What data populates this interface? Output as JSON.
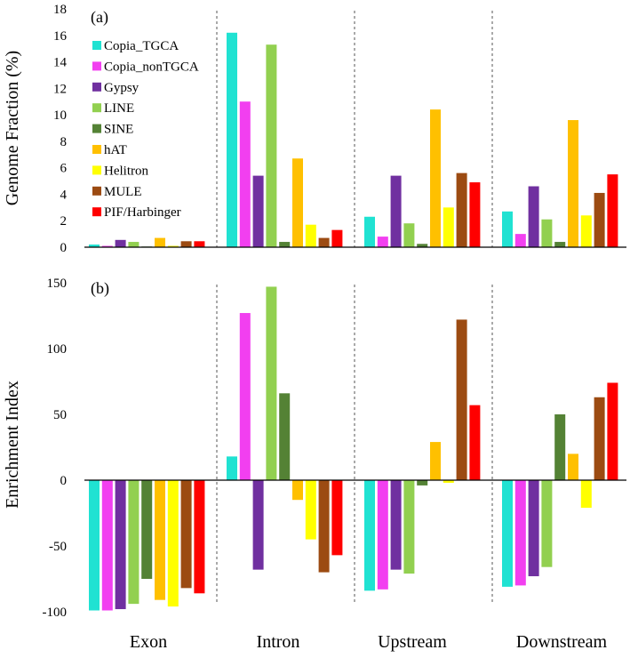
{
  "chart_data": [
    {
      "type": "bar",
      "panel": "(a)",
      "ylabel": "Genome Fraction (%)",
      "ylim": [
        0,
        18
      ],
      "yticks": [
        "0",
        "2",
        "4",
        "6",
        "8",
        "10",
        "12",
        "14",
        "16",
        "18"
      ],
      "categories": [
        "Exon",
        "Intron",
        "Upstream",
        "Downstream"
      ],
      "series": [
        {
          "name": "Copia_TGCA",
          "color": "#20E2D2",
          "values": [
            0.2,
            16.2,
            2.3,
            2.7
          ]
        },
        {
          "name": "Copia_nonTGCA",
          "color": "#F23FF0",
          "values": [
            0.1,
            11.0,
            0.8,
            1.0
          ]
        },
        {
          "name": "Gypsy",
          "color": "#7030A0",
          "values": [
            0.55,
            5.4,
            5.4,
            4.6
          ]
        },
        {
          "name": "LINE",
          "color": "#92D050",
          "values": [
            0.4,
            15.3,
            1.8,
            2.1
          ]
        },
        {
          "name": "SINE",
          "color": "#548235",
          "values": [
            0.05,
            0.4,
            0.25,
            0.4
          ]
        },
        {
          "name": "hAT",
          "color": "#FFC000",
          "values": [
            0.7,
            6.7,
            10.4,
            9.6
          ]
        },
        {
          "name": "Helitron",
          "color": "#FFFF00",
          "values": [
            0.1,
            1.7,
            3.0,
            2.4
          ]
        },
        {
          "name": "MULE",
          "color": "#9C4B12",
          "values": [
            0.45,
            0.7,
            5.6,
            4.1
          ]
        },
        {
          "name": "PIF/Harbinger",
          "color": "#FF0000",
          "values": [
            0.45,
            1.3,
            4.9,
            5.5
          ]
        }
      ],
      "legend_position": "top-left"
    },
    {
      "type": "bar",
      "panel": "(b)",
      "ylabel": "Enrichment Index",
      "ylim": [
        -100,
        150
      ],
      "yticks": [
        "-100",
        "-50",
        "0",
        "50",
        "100",
        "150"
      ],
      "categories": [
        "Exon",
        "Intron",
        "Upstream",
        "Downstream"
      ],
      "series": [
        {
          "name": "Copia_TGCA",
          "color": "#20E2D2",
          "values": [
            -99,
            18,
            -84,
            -81
          ]
        },
        {
          "name": "Copia_nonTGCA",
          "color": "#F23FF0",
          "values": [
            -99,
            127,
            -83,
            -80
          ]
        },
        {
          "name": "Gypsy",
          "color": "#7030A0",
          "values": [
            -98,
            -68,
            -68,
            -73
          ]
        },
        {
          "name": "LINE",
          "color": "#92D050",
          "values": [
            -94,
            147,
            -71,
            -66
          ]
        },
        {
          "name": "SINE",
          "color": "#548235",
          "values": [
            -75,
            66,
            -4,
            50
          ]
        },
        {
          "name": "hAT",
          "color": "#FFC000",
          "values": [
            -91,
            -15,
            29,
            20
          ]
        },
        {
          "name": "Helitron",
          "color": "#FFFF00",
          "values": [
            -96,
            -45,
            -2,
            -21
          ]
        },
        {
          "name": "MULE",
          "color": "#9C4B12",
          "values": [
            -82,
            -70,
            122,
            63
          ]
        },
        {
          "name": "PIF/Harbinger",
          "color": "#FF0000",
          "values": [
            -86,
            -57,
            57,
            74
          ]
        }
      ]
    }
  ]
}
